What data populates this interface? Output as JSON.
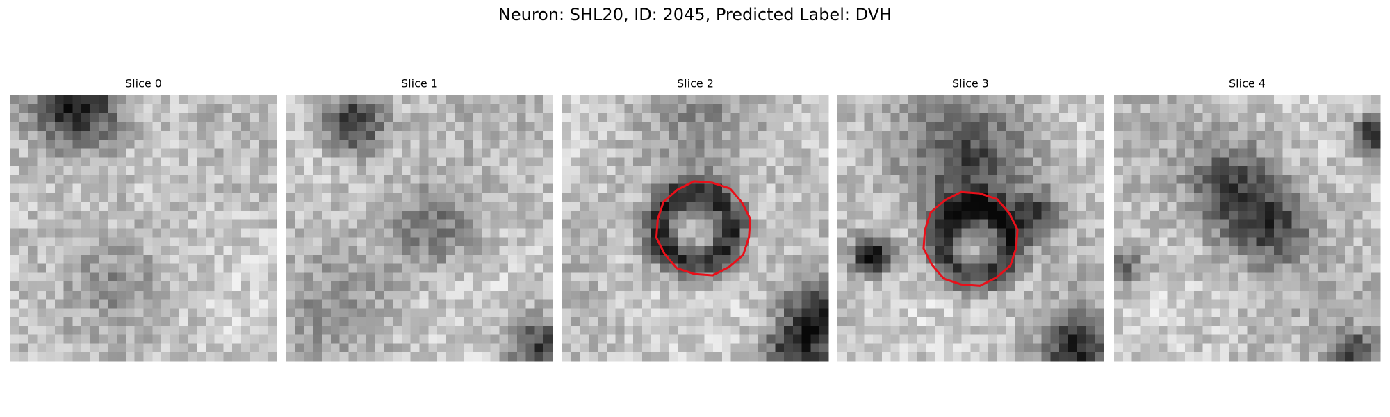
{
  "title": "Neuron: SHL20, ID: 2045, Predicted Label: DVH",
  "slices": [
    "Slice 0",
    "Slice 1",
    "Slice 2",
    "Slice 3",
    "Slice 4"
  ]
}
